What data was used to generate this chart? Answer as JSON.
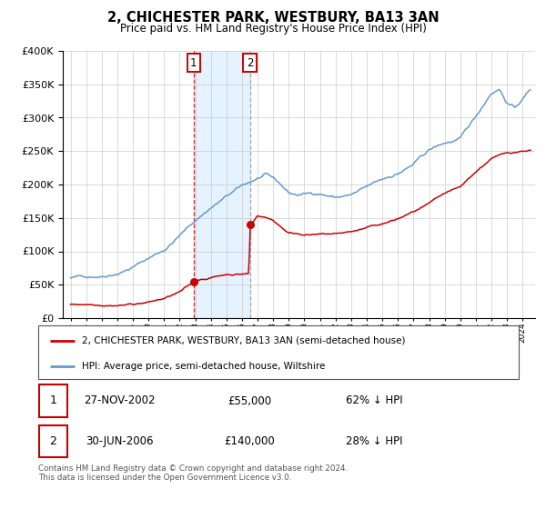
{
  "title": "2, CHICHESTER PARK, WESTBURY, BA13 3AN",
  "subtitle": "Price paid vs. HM Land Registry's House Price Index (HPI)",
  "legend_label_red": "2, CHICHESTER PARK, WESTBURY, BA13 3AN (semi-detached house)",
  "legend_label_blue": "HPI: Average price, semi-detached house, Wiltshire",
  "transaction1_label": "27-NOV-2002",
  "transaction1_price": "£55,000",
  "transaction1_hpi": "62% ↓ HPI",
  "transaction2_label": "30-JUN-2006",
  "transaction2_price": "£140,000",
  "transaction2_hpi": "28% ↓ HPI",
  "footer_line1": "Contains HM Land Registry data © Crown copyright and database right 2024.",
  "footer_line2": "This data is licensed under the Open Government Licence v3.0.",
  "red_color": "#cc0000",
  "blue_color": "#6699cc",
  "shading_color": "#ddeeff",
  "transaction1_x": 2002.9,
  "transaction2_x": 2006.5,
  "transaction1_y": 55000,
  "transaction2_y": 140000,
  "ylim": [
    0,
    400000
  ],
  "xlim_start": 1994.5,
  "xlim_end": 2024.8
}
